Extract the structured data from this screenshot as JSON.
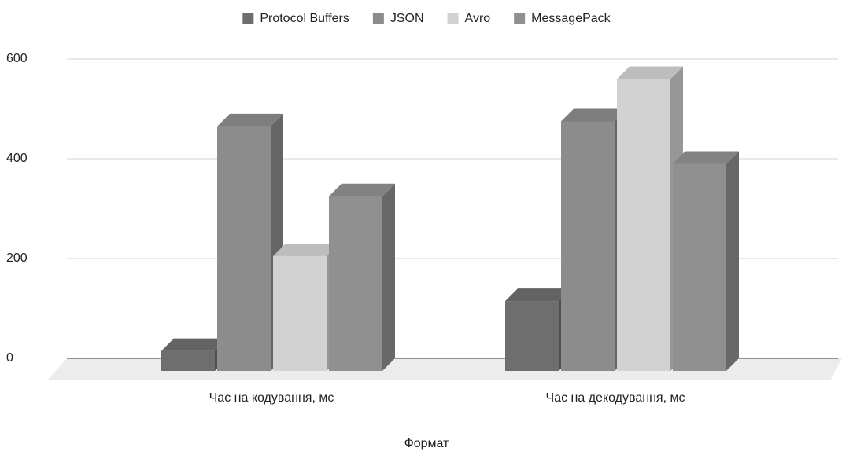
{
  "chart_data": {
    "type": "bar3d",
    "categories": [
      "Час на кодування, мс",
      "Час на декодування, мс"
    ],
    "series": [
      {
        "name": "Protocol Buffers",
        "color": "#6e6e6e",
        "values": [
          40,
          140
        ]
      },
      {
        "name": "JSON",
        "color": "#8c8c8c",
        "values": [
          490,
          500
        ]
      },
      {
        "name": "Avro",
        "color": "#d2d2d2",
        "values": [
          230,
          585
        ]
      },
      {
        "name": "MessagePack",
        "color": "#909090",
        "values": [
          350,
          415
        ]
      }
    ],
    "x_label": "Формат",
    "ylim": [
      0,
      600
    ],
    "yticks": [
      0,
      200,
      400,
      600
    ],
    "grid": true,
    "legend": "top"
  }
}
